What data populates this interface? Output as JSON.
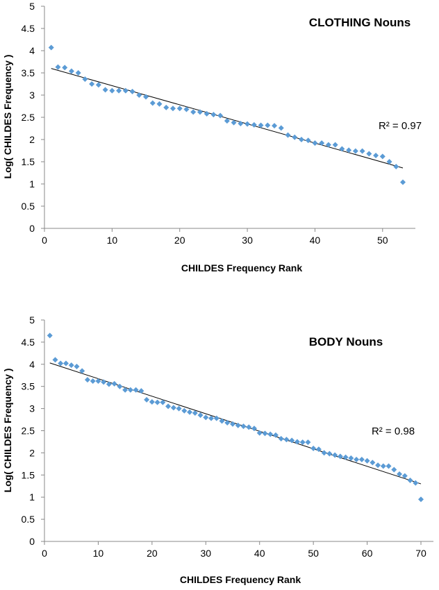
{
  "chart_data": [
    {
      "type": "scatter",
      "title": "CLOTHING Nouns",
      "xlabel": "CHILDES Frequency Rank",
      "ylabel": "Log( CHILDES Frequency )",
      "xlim": [
        0,
        53
      ],
      "ylim": [
        0,
        5
      ],
      "xticks": [
        "0",
        "10",
        "20",
        "30",
        "40",
        "50"
      ],
      "yticks": [
        "0",
        "0.5",
        "1",
        "1.5",
        "2",
        "2.5",
        "3",
        "3.5",
        "4",
        "4.5",
        "5"
      ],
      "r2_label": "R² = 0.97",
      "grid": false,
      "trendline": {
        "type": "linear",
        "x": [
          1,
          53
        ],
        "y": [
          3.6,
          1.36
        ]
      },
      "marker_color": "#5B9BD5",
      "line_color": "#000000",
      "x": [
        1,
        2,
        3,
        4,
        5,
        6,
        7,
        8,
        9,
        10,
        11,
        12,
        13,
        14,
        15,
        16,
        17,
        18,
        19,
        20,
        21,
        22,
        23,
        24,
        25,
        26,
        27,
        28,
        29,
        30,
        31,
        32,
        33,
        34,
        35,
        36,
        37,
        38,
        39,
        40,
        41,
        42,
        43,
        44,
        45,
        46,
        47,
        48,
        49,
        50,
        51,
        52,
        53
      ],
      "y": [
        4.07,
        3.63,
        3.62,
        3.54,
        3.5,
        3.36,
        3.25,
        3.23,
        3.12,
        3.1,
        3.1,
        3.1,
        3.08,
        3.0,
        2.96,
        2.82,
        2.8,
        2.72,
        2.7,
        2.7,
        2.68,
        2.62,
        2.62,
        2.58,
        2.56,
        2.54,
        2.42,
        2.38,
        2.36,
        2.35,
        2.33,
        2.32,
        2.32,
        2.31,
        2.26,
        2.1,
        2.05,
        2.0,
        1.98,
        1.92,
        1.92,
        1.88,
        1.88,
        1.79,
        1.76,
        1.74,
        1.74,
        1.68,
        1.64,
        1.62,
        1.5,
        1.39,
        1.04
      ]
    },
    {
      "type": "scatter",
      "title": "BODY Nouns",
      "xlabel": "CHILDES Frequency Rank",
      "ylabel": "Log( CHILDES Frequency )",
      "xlim": [
        0,
        70
      ],
      "ylim": [
        0,
        5
      ],
      "xticks": [
        "0",
        "10",
        "20",
        "30",
        "40",
        "50",
        "60",
        "70"
      ],
      "yticks": [
        "0",
        "0.5",
        "1",
        "1.5",
        "2",
        "2.5",
        "3",
        "3.5",
        "4",
        "4.5",
        "5"
      ],
      "r2_label": "R² = 0.98",
      "grid": false,
      "trendline": {
        "type": "linear",
        "x": [
          1,
          70
        ],
        "y": [
          4.03,
          1.3
        ]
      },
      "marker_color": "#5B9BD5",
      "line_color": "#000000",
      "x": [
        1,
        2,
        3,
        4,
        5,
        6,
        7,
        8,
        9,
        10,
        11,
        12,
        13,
        14,
        15,
        16,
        17,
        18,
        19,
        20,
        21,
        22,
        23,
        24,
        25,
        26,
        27,
        28,
        29,
        30,
        31,
        32,
        33,
        34,
        35,
        36,
        37,
        38,
        39,
        40,
        41,
        42,
        43,
        44,
        45,
        46,
        47,
        48,
        49,
        50,
        51,
        52,
        53,
        54,
        55,
        56,
        57,
        58,
        59,
        60,
        61,
        62,
        63,
        64,
        65,
        66,
        67,
        68,
        69,
        70
      ],
      "y": [
        4.65,
        4.1,
        4.02,
        4.02,
        3.98,
        3.95,
        3.85,
        3.65,
        3.62,
        3.62,
        3.6,
        3.55,
        3.56,
        3.5,
        3.42,
        3.42,
        3.42,
        3.4,
        3.2,
        3.15,
        3.14,
        3.14,
        3.05,
        3.02,
        3.0,
        2.95,
        2.92,
        2.9,
        2.85,
        2.8,
        2.78,
        2.78,
        2.72,
        2.68,
        2.65,
        2.62,
        2.6,
        2.58,
        2.55,
        2.45,
        2.44,
        2.42,
        2.4,
        2.32,
        2.3,
        2.28,
        2.25,
        2.24,
        2.24,
        2.1,
        2.08,
        2.0,
        1.98,
        1.95,
        1.92,
        1.9,
        1.88,
        1.85,
        1.85,
        1.82,
        1.78,
        1.72,
        1.7,
        1.7,
        1.62,
        1.52,
        1.48,
        1.38,
        1.32,
        0.95
      ]
    }
  ]
}
